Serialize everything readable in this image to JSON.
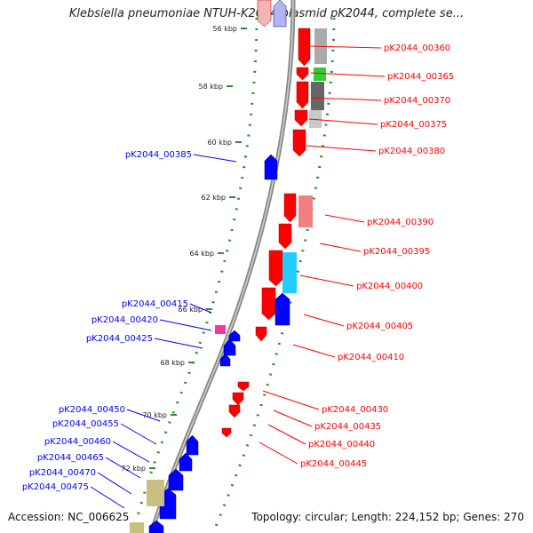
{
  "title": "Klebsiella pneumoniae NTUH-K2044 plasmid pK2044, complete se...",
  "footer": {
    "accession": "Accession: NC_006625",
    "topology": "Topology: circular; Length: 224,152 bp; Genes: 270"
  },
  "colors": {
    "forward": "#ff0000",
    "reverse": "#0000ff",
    "backbone": "#888888",
    "tick_dots": "#2e8b2e",
    "cog_grey": "#aaaaaa",
    "cog_dark": "#666666",
    "cog_green": "#33cc33",
    "cog_pink": "#f08080",
    "cog_cyan": "#22ccff",
    "cog_magenta": "#ff3399",
    "cog_olive": "#c8c080"
  },
  "scale": {
    "unit": "kbp",
    "labels": [
      "56 kbp",
      "58 kbp",
      "60 kbp",
      "62 kbp",
      "64 kbp",
      "66 kbp",
      "68 kbp",
      "70 kbp",
      "72 kbp"
    ]
  },
  "forward_genes": [
    "pK2044_00360",
    "pK2044_00365",
    "pK2044_00370",
    "pK2044_00375",
    "pK2044_00380",
    "pK2044_00390",
    "pK2044_00395",
    "pK2044_00400",
    "pK2044_00405",
    "pK2044_00410",
    "pK2044_00430",
    "pK2044_00435",
    "pK2044_00440",
    "pK2044_00445"
  ],
  "reverse_genes": [
    "pK2044_00385",
    "pK2044_00415",
    "pK2044_00420",
    "pK2044_00425",
    "pK2044_00450",
    "pK2044_00455",
    "pK2044_00460",
    "pK2044_00465",
    "pK2044_00470",
    "pK2044_00475"
  ]
}
